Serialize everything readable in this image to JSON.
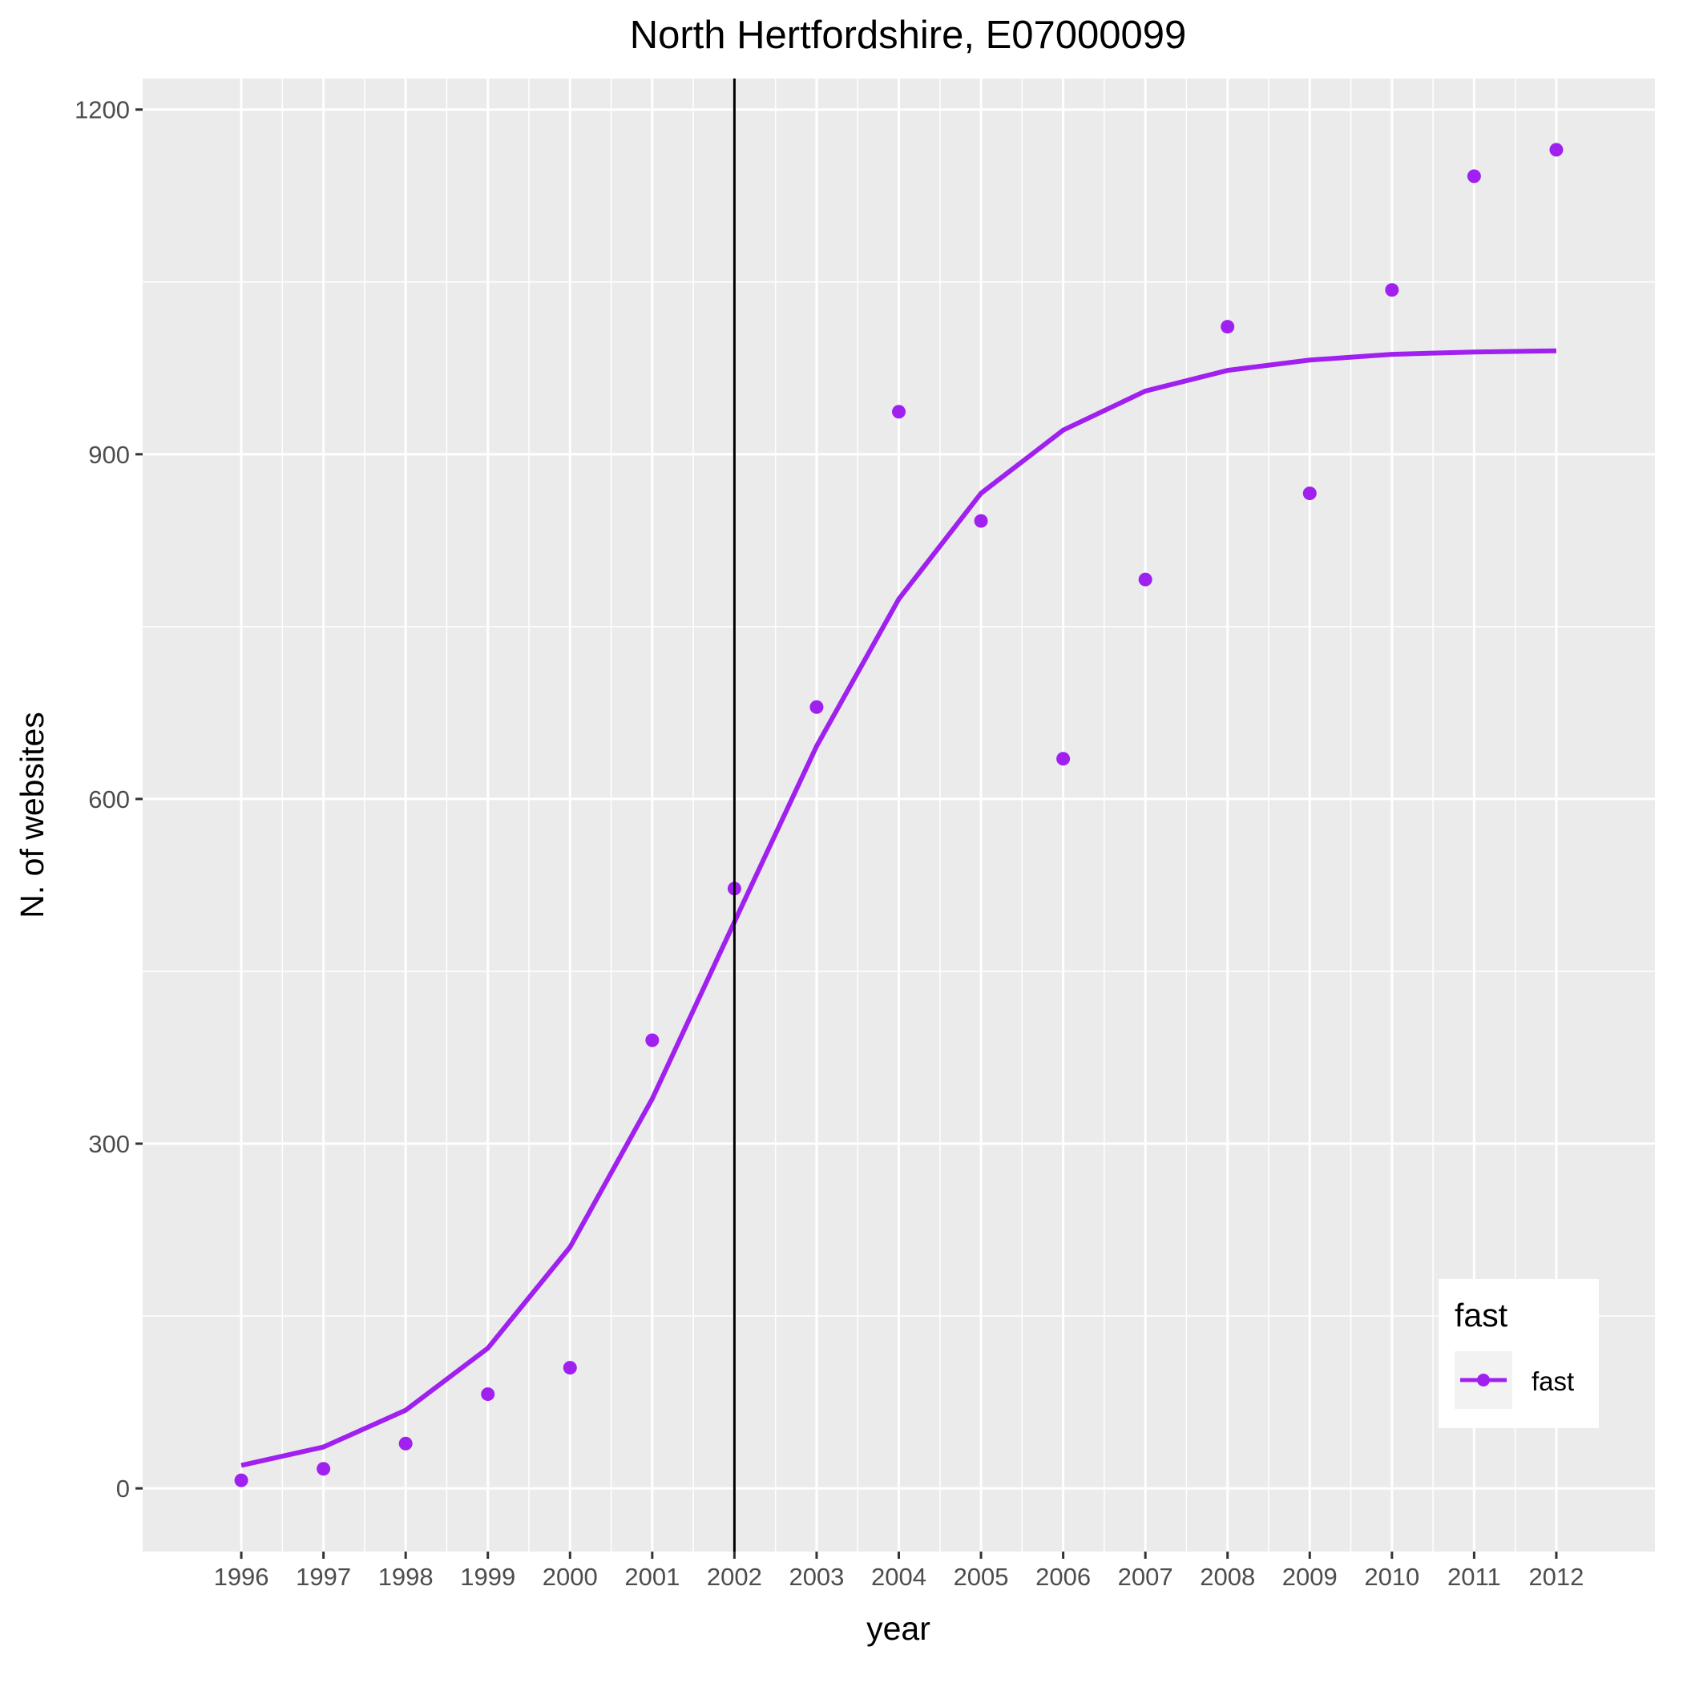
{
  "chart_data": {
    "type": "line",
    "title": "North Hertfordshire, E07000099",
    "xlabel": "year",
    "ylabel": "N. of websites",
    "x": [
      1996,
      1997,
      1998,
      1999,
      2000,
      2001,
      2002,
      2003,
      2004,
      2005,
      2006,
      2007,
      2008,
      2009,
      2010,
      2011,
      2012
    ],
    "x_tick_labels": [
      "1996",
      "1997",
      "1998",
      "1999",
      "2000",
      "2001",
      "2002",
      "2003",
      "2004",
      "2005",
      "2006",
      "2007",
      "2008",
      "2009",
      "2010",
      "2011",
      "2012"
    ],
    "y_ticks": [
      0,
      300,
      600,
      900,
      1200
    ],
    "y_tick_labels": [
      "0",
      "300",
      "600",
      "900",
      "1200"
    ],
    "xlim": [
      1994.8,
      2013.2
    ],
    "ylim": [
      -55,
      1227
    ],
    "grid": true,
    "vline": {
      "x": 2002.0,
      "color": "#000000"
    },
    "series": [
      {
        "name": "fast",
        "color": "#A020F0",
        "points": [
          7,
          17,
          39,
          82,
          105,
          390,
          522,
          680,
          937,
          842,
          635,
          791,
          1011,
          866,
          1043,
          1142,
          1165
        ],
        "fit": [
          20,
          36,
          68,
          122,
          210,
          339,
          493,
          646,
          774,
          866,
          921,
          955,
          973,
          982,
          987,
          989,
          990
        ]
      }
    ],
    "legend": {
      "title": "fast",
      "position": "bottom-right",
      "entries": [
        "fast"
      ]
    },
    "colors": {
      "panel": "#EBEBEB",
      "grid": "#FFFFFF",
      "axis_text": "#4D4D4D",
      "text": "#000000"
    }
  }
}
